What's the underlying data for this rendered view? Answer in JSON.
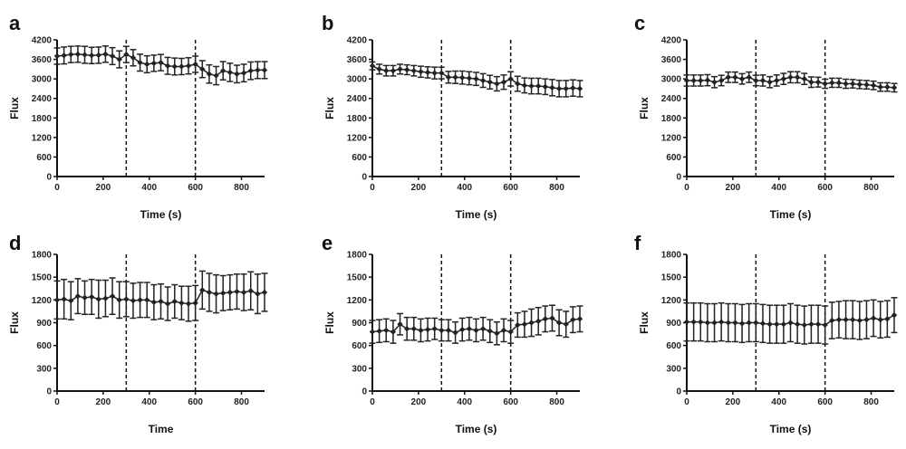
{
  "chart_data": [
    {
      "panel": "a",
      "type": "line",
      "xlabel": "Time (s)",
      "ylabel": "Flux",
      "xlim": [
        0,
        900
      ],
      "ylim": [
        0,
        4200
      ],
      "xticks": [
        0,
        200,
        400,
        600,
        800
      ],
      "yticks": [
        0,
        600,
        1200,
        1800,
        2400,
        3000,
        3600,
        4200
      ],
      "vlines": [
        300,
        600
      ],
      "series": [
        {
          "x": [
            0,
            30,
            60,
            90,
            120,
            150,
            180,
            210,
            240,
            270,
            300,
            330,
            360,
            390,
            420,
            450,
            480,
            510,
            540,
            570,
            600,
            630,
            660,
            690,
            720,
            750,
            780,
            810,
            840,
            870,
            900
          ],
          "y": [
            3700,
            3720,
            3750,
            3760,
            3740,
            3720,
            3730,
            3760,
            3700,
            3600,
            3750,
            3650,
            3500,
            3450,
            3480,
            3500,
            3400,
            3380,
            3380,
            3400,
            3450,
            3300,
            3150,
            3100,
            3250,
            3200,
            3150,
            3180,
            3250,
            3270,
            3270
          ],
          "err": [
            250,
            260,
            250,
            250,
            260,
            250,
            250,
            250,
            260,
            260,
            250,
            250,
            260,
            260,
            250,
            250,
            260,
            260,
            250,
            250,
            250,
            260,
            280,
            280,
            280,
            280,
            270,
            270,
            270,
            260,
            260
          ]
        }
      ]
    },
    {
      "panel": "b",
      "type": "line",
      "xlabel": "Time (s)",
      "ylabel": "Flux",
      "xlim": [
        0,
        900
      ],
      "ylim": [
        0,
        4200
      ],
      "xticks": [
        0,
        200,
        400,
        600,
        800
      ],
      "yticks": [
        0,
        600,
        1200,
        1800,
        2400,
        3000,
        3600,
        4200
      ],
      "vlines": [
        300,
        600
      ],
      "series": [
        {
          "x": [
            0,
            30,
            60,
            90,
            120,
            150,
            180,
            210,
            240,
            270,
            300,
            330,
            360,
            390,
            420,
            450,
            480,
            510,
            540,
            570,
            600,
            630,
            660,
            690,
            720,
            750,
            780,
            810,
            840,
            870,
            900
          ],
          "y": [
            3400,
            3300,
            3250,
            3250,
            3300,
            3280,
            3250,
            3220,
            3200,
            3180,
            3180,
            3050,
            3050,
            3040,
            3020,
            3000,
            2950,
            2900,
            2850,
            2900,
            3000,
            2850,
            2800,
            2780,
            2780,
            2760,
            2730,
            2700,
            2700,
            2720,
            2700
          ],
          "err": [
            120,
            150,
            160,
            160,
            150,
            150,
            160,
            170,
            170,
            180,
            180,
            180,
            190,
            200,
            200,
            200,
            210,
            210,
            220,
            220,
            220,
            230,
            230,
            240,
            240,
            240,
            250,
            250,
            250,
            250,
            250
          ]
        }
      ]
    },
    {
      "panel": "c",
      "type": "line",
      "xlabel": "Time (s)",
      "ylabel": "Flux",
      "xlim": [
        0,
        900
      ],
      "ylim": [
        0,
        4200
      ],
      "xticks": [
        0,
        200,
        400,
        600,
        800
      ],
      "yticks": [
        0,
        600,
        1200,
        1800,
        2400,
        3000,
        3600,
        4200
      ],
      "vlines": [
        300,
        600
      ],
      "series": [
        {
          "x": [
            0,
            30,
            60,
            90,
            120,
            150,
            180,
            210,
            240,
            270,
            300,
            330,
            360,
            390,
            420,
            450,
            480,
            510,
            540,
            570,
            600,
            630,
            660,
            690,
            720,
            750,
            780,
            810,
            840,
            870,
            900
          ],
          "y": [
            2950,
            2950,
            2950,
            2960,
            2900,
            2950,
            3050,
            3050,
            3000,
            3050,
            2950,
            2950,
            2900,
            2950,
            3000,
            3050,
            3050,
            3000,
            2900,
            2900,
            2850,
            2880,
            2880,
            2850,
            2850,
            2830,
            2820,
            2800,
            2750,
            2750,
            2730
          ],
          "err": [
            170,
            170,
            170,
            170,
            170,
            160,
            160,
            160,
            160,
            160,
            160,
            170,
            170,
            170,
            170,
            170,
            170,
            170,
            160,
            150,
            140,
            140,
            140,
            140,
            130,
            130,
            130,
            130,
            130,
            130,
            130
          ]
        }
      ]
    },
    {
      "panel": "d",
      "type": "line",
      "xlabel": "Time",
      "ylabel": "Flux",
      "xlim": [
        0,
        900
      ],
      "ylim": [
        0,
        1800
      ],
      "xticks": [
        0,
        200,
        400,
        600,
        800
      ],
      "yticks": [
        0,
        300,
        600,
        900,
        1200,
        1500,
        1800
      ],
      "vlines": [
        300,
        600
      ],
      "series": [
        {
          "x": [
            0,
            30,
            60,
            90,
            120,
            150,
            180,
            210,
            240,
            270,
            300,
            330,
            360,
            390,
            420,
            450,
            480,
            510,
            540,
            570,
            600,
            630,
            660,
            690,
            720,
            750,
            780,
            810,
            840,
            870,
            900
          ],
          "y": [
            1200,
            1210,
            1190,
            1250,
            1230,
            1240,
            1210,
            1220,
            1250,
            1200,
            1210,
            1190,
            1200,
            1200,
            1170,
            1180,
            1150,
            1180,
            1160,
            1150,
            1160,
            1330,
            1300,
            1280,
            1290,
            1300,
            1310,
            1300,
            1320,
            1280,
            1300
          ],
          "err": [
            250,
            260,
            250,
            230,
            220,
            230,
            250,
            240,
            240,
            240,
            230,
            230,
            230,
            230,
            230,
            230,
            220,
            220,
            220,
            230,
            230,
            250,
            250,
            250,
            230,
            230,
            230,
            240,
            250,
            260,
            250
          ]
        }
      ]
    },
    {
      "panel": "e",
      "type": "line",
      "xlabel": "Time (s)",
      "ylabel": "Flux",
      "xlim": [
        0,
        900
      ],
      "ylim": [
        0,
        1800
      ],
      "xticks": [
        0,
        200,
        400,
        600,
        800
      ],
      "yticks": [
        0,
        300,
        600,
        900,
        1200,
        1500,
        1800
      ],
      "vlines": [
        300,
        600
      ],
      "series": [
        {
          "x": [
            0,
            30,
            60,
            90,
            120,
            150,
            180,
            210,
            240,
            270,
            300,
            330,
            360,
            390,
            420,
            450,
            480,
            510,
            540,
            570,
            600,
            630,
            660,
            690,
            720,
            750,
            780,
            810,
            840,
            870,
            900
          ],
          "y": [
            780,
            790,
            800,
            780,
            880,
            820,
            820,
            800,
            810,
            820,
            800,
            800,
            770,
            810,
            820,
            800,
            820,
            790,
            760,
            800,
            780,
            870,
            880,
            900,
            920,
            950,
            960,
            900,
            880,
            940,
            950
          ],
          "err": [
            150,
            150,
            150,
            150,
            140,
            150,
            150,
            150,
            150,
            140,
            140,
            140,
            140,
            150,
            150,
            150,
            150,
            150,
            150,
            150,
            150,
            160,
            170,
            180,
            180,
            170,
            170,
            170,
            170,
            170,
            170
          ]
        }
      ]
    },
    {
      "panel": "f",
      "type": "line",
      "xlabel": "Time (s)",
      "ylabel": "Flux",
      "xlim": [
        0,
        900
      ],
      "ylim": [
        0,
        1800
      ],
      "xticks": [
        0,
        200,
        400,
        600,
        800
      ],
      "yticks": [
        0,
        300,
        600,
        900,
        1200,
        1500,
        1800
      ],
      "vlines": [
        300,
        600
      ],
      "series": [
        {
          "x": [
            0,
            30,
            60,
            90,
            120,
            150,
            180,
            210,
            240,
            270,
            300,
            330,
            360,
            390,
            420,
            450,
            480,
            510,
            540,
            570,
            600,
            630,
            660,
            690,
            720,
            750,
            780,
            810,
            840,
            870,
            900
          ],
          "y": [
            910,
            910,
            910,
            900,
            900,
            910,
            900,
            900,
            890,
            900,
            900,
            890,
            880,
            880,
            880,
            900,
            880,
            870,
            880,
            880,
            870,
            930,
            940,
            940,
            940,
            930,
            940,
            960,
            940,
            950,
            1000
          ],
          "err": [
            250,
            250,
            250,
            250,
            250,
            250,
            250,
            250,
            250,
            250,
            250,
            250,
            250,
            250,
            250,
            250,
            250,
            250,
            250,
            250,
            250,
            240,
            240,
            250,
            250,
            250,
            250,
            240,
            240,
            240,
            230
          ]
        }
      ]
    }
  ]
}
